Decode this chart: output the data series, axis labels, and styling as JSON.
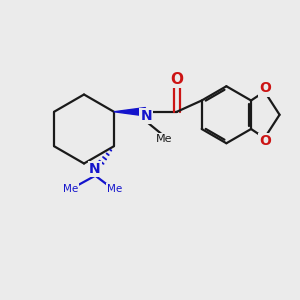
{
  "background_color": "#ebebeb",
  "bond_color": "#1a1a1a",
  "nitrogen_color": "#1414cc",
  "oxygen_color": "#cc1414",
  "line_width": 1.6,
  "figsize": [
    3.0,
    3.0
  ],
  "dpi": 100,
  "xlim": [
    0,
    10
  ],
  "ylim": [
    0,
    10
  ]
}
